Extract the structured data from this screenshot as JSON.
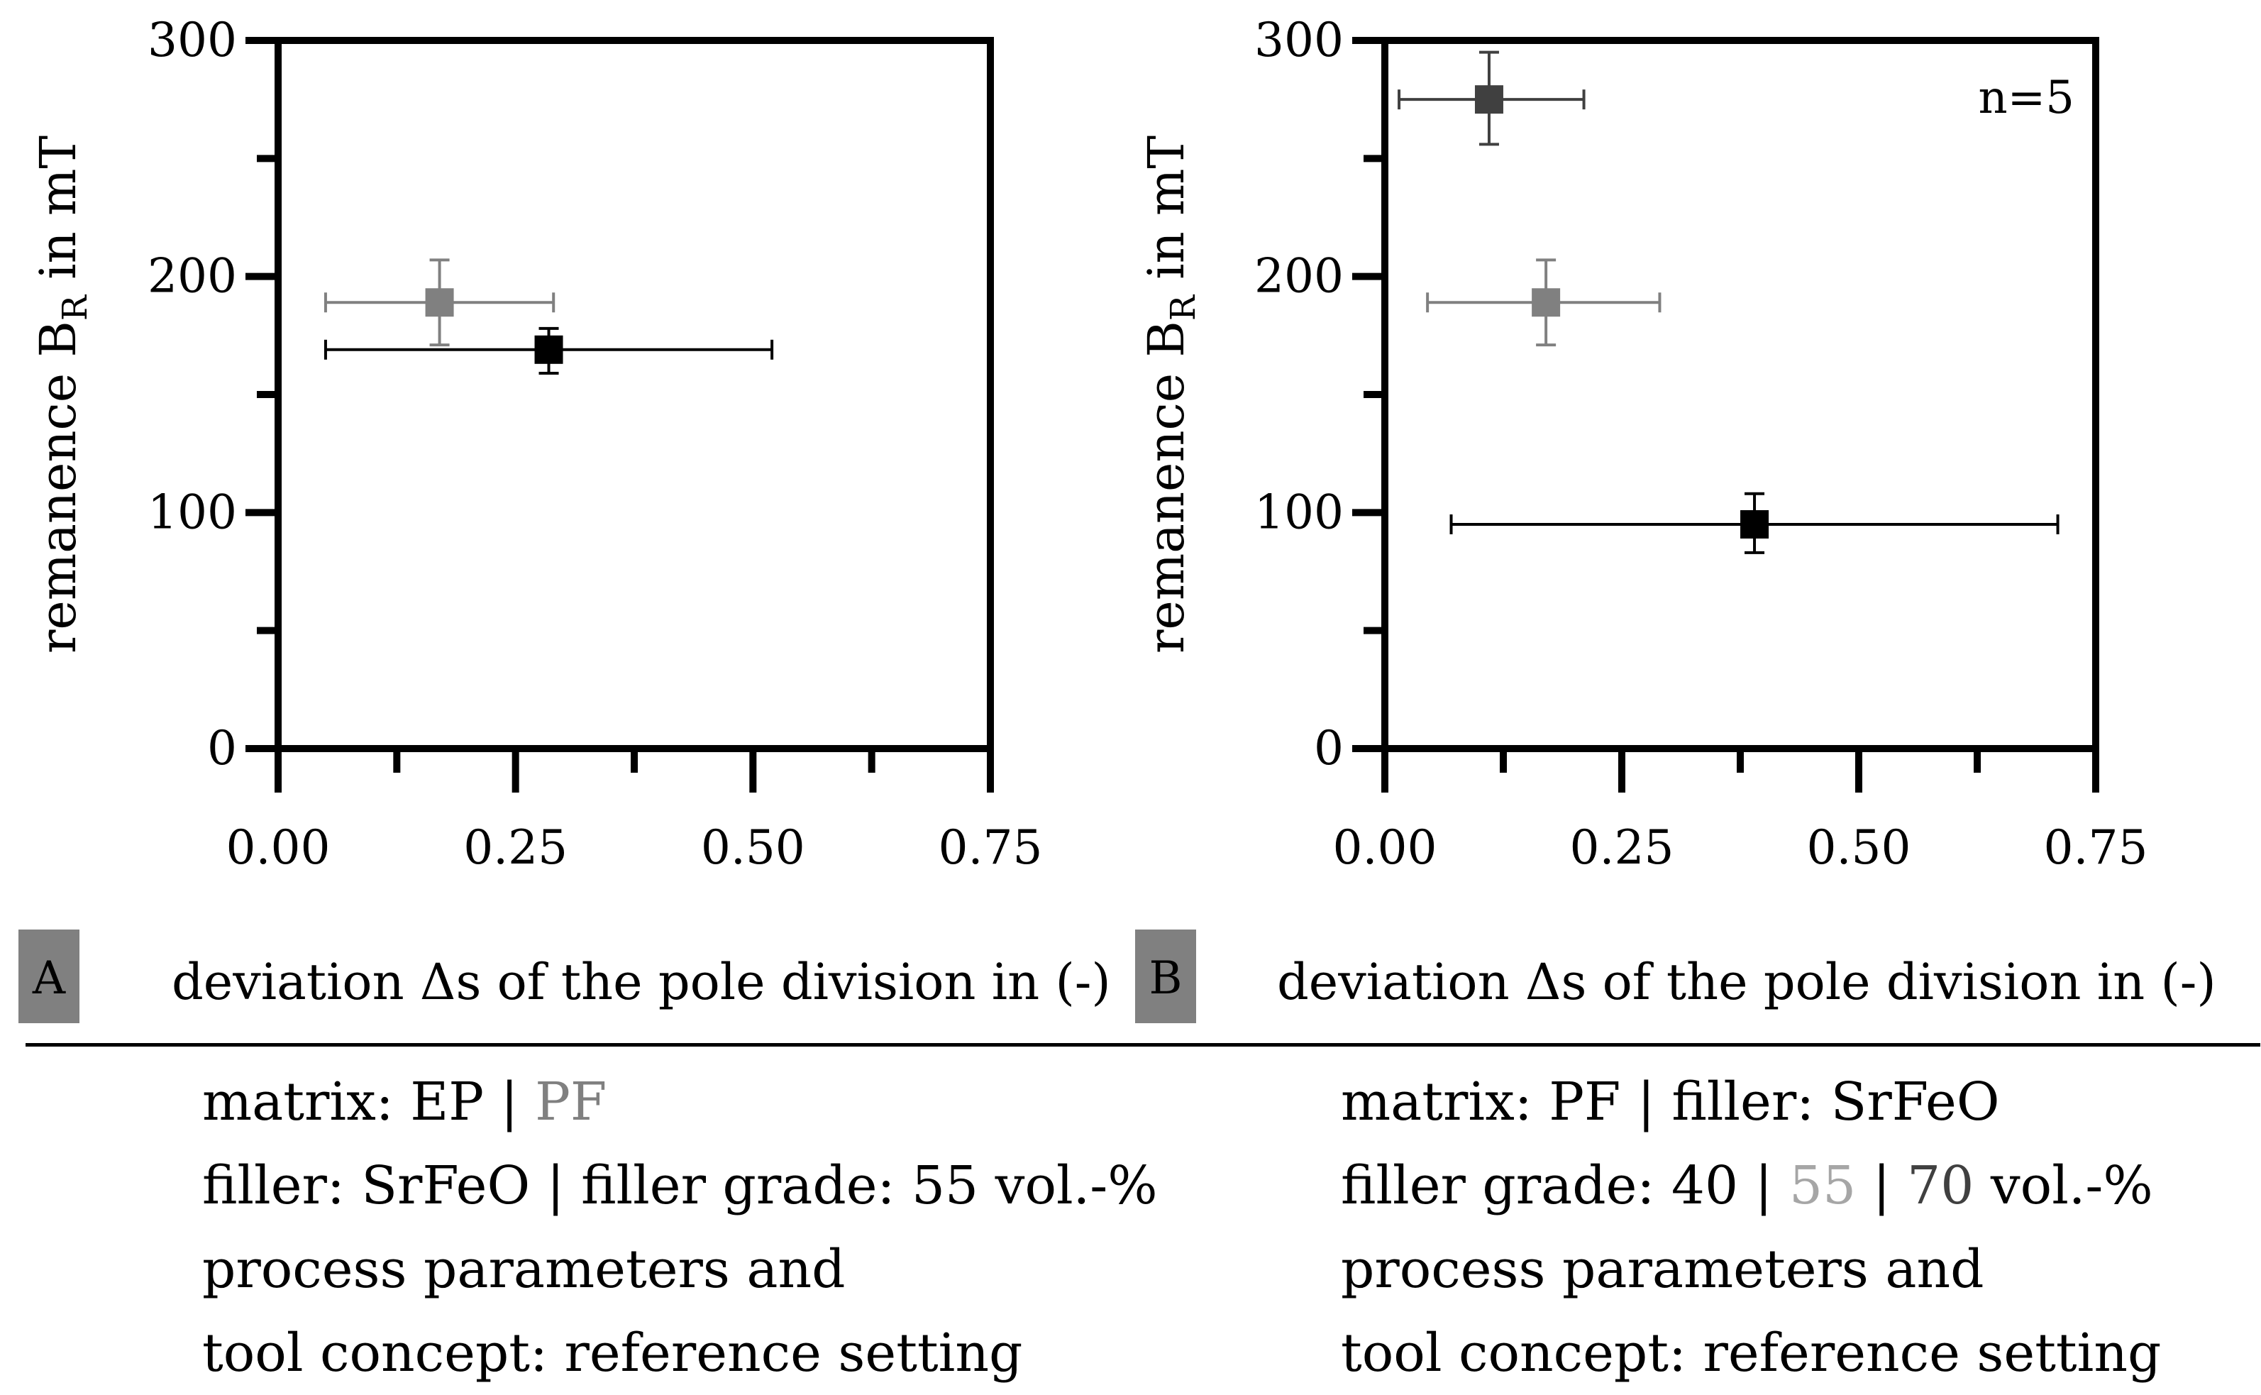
{
  "chart_data": [
    {
      "panel": "A",
      "type": "scatter",
      "xlabel": "deviation Δs of the pole division in (-)",
      "ylabel_main": "remanence B",
      "ylabel_sub": "R",
      "ylabel_unit": " in mT",
      "xlim": [
        0,
        0.75
      ],
      "ylim": [
        0,
        300
      ],
      "xticks": [
        0.0,
        0.25,
        0.5,
        0.75
      ],
      "xtick_labels": [
        "0.00",
        "0.25",
        "0.50",
        "0.75"
      ],
      "xminor": [
        0.125,
        0.375,
        0.625
      ],
      "yticks": [
        0,
        100,
        200,
        300
      ],
      "ytick_labels": [
        "0",
        "100",
        "200",
        "300"
      ],
      "yminor": [
        50,
        150,
        250
      ],
      "annotation": "",
      "series": [
        {
          "name": "EP",
          "color": "#000000",
          "x": 0.285,
          "y": 169,
          "xerr_low": 0.05,
          "xerr_high": 0.52,
          "yerr_low": 159,
          "yerr_high": 178
        },
        {
          "name": "PF",
          "color": "#808080",
          "x": 0.17,
          "y": 189,
          "xerr_low": 0.05,
          "xerr_high": 0.29,
          "yerr_low": 171,
          "yerr_high": 207
        }
      ]
    },
    {
      "panel": "B",
      "type": "scatter",
      "xlabel": "deviation Δs of the pole division in (-)",
      "ylabel_main": "remanence B",
      "ylabel_sub": "R",
      "ylabel_unit": " in mT",
      "xlim": [
        0,
        0.75
      ],
      "ylim": [
        0,
        300
      ],
      "xticks": [
        0.0,
        0.25,
        0.5,
        0.75
      ],
      "xtick_labels": [
        "0.00",
        "0.25",
        "0.50",
        "0.75"
      ],
      "xminor": [
        0.125,
        0.375,
        0.625
      ],
      "yticks": [
        0,
        100,
        200,
        300
      ],
      "ytick_labels": [
        "0",
        "100",
        "200",
        "300"
      ],
      "yminor": [
        50,
        150,
        250
      ],
      "annotation": "n=5",
      "series": [
        {
          "name": "40 vol.-%",
          "color": "#000000",
          "x": 0.39,
          "y": 95,
          "xerr_low": 0.07,
          "xerr_high": 0.71,
          "yerr_low": 83,
          "yerr_high": 108
        },
        {
          "name": "55 vol.-%",
          "color": "#808080",
          "x": 0.17,
          "y": 189,
          "xerr_low": 0.045,
          "xerr_high": 0.29,
          "yerr_low": 171,
          "yerr_high": 207
        },
        {
          "name": "70 vol.-%",
          "color": "#404040",
          "x": 0.11,
          "y": 275,
          "xerr_low": 0.015,
          "xerr_high": 0.21,
          "yerr_low": 256,
          "yerr_high": 295
        }
      ]
    }
  ],
  "caption_a": {
    "line1_prefix": "matrix: EP",
    "line1_sep": " | ",
    "line1_gray": "PF",
    "line2": "filler: SrFeO | filler grade: 55 vol.-%",
    "line3": "process parameters and",
    "line4": "tool concept: reference setting"
  },
  "caption_b": {
    "line1": "matrix: PF | filler: SrFeO",
    "line2_prefix": "filler grade: 40",
    "line2_sep1": " | ",
    "line2_light": "55",
    "line2_sep2": " | ",
    "line2_dark": "70",
    "line2_suffix": " vol.-%",
    "line3": "process parameters and",
    "line4": "tool concept: reference setting"
  },
  "colors": {
    "black": "#000000",
    "gray": "#808080",
    "dark_gray": "#404040",
    "light_gray": "#a6a6a6",
    "panel_label_bg": "#808080"
  }
}
